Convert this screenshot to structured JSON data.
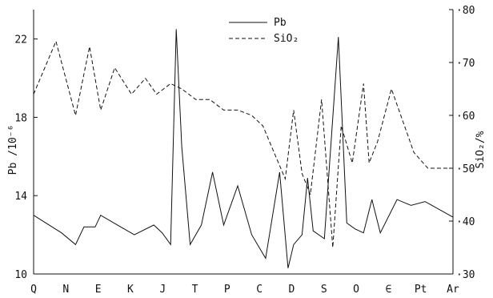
{
  "chart_data": {
    "type": "line",
    "categories": [
      "Q",
      "N",
      "E",
      "K",
      "J",
      "T",
      "P",
      "C",
      "D",
      "S",
      "O",
      "∈",
      "Pt",
      "Ar"
    ],
    "left_axis": {
      "label": "Pb /10⁻⁶",
      "ylim": [
        10,
        23.5
      ],
      "ticks": [
        10,
        14,
        18,
        22
      ],
      "tick_labels": [
        "10",
        "14",
        "18",
        "22"
      ]
    },
    "right_axis": {
      "label": "SiO₂/%",
      "ylim": [
        30,
        80
      ],
      "ticks": [
        30,
        40,
        50,
        60,
        70,
        80
      ],
      "tick_labels": [
        "30",
        "40",
        "50",
        "60",
        "70",
        "80"
      ]
    },
    "x_range": [
      0,
      15
    ],
    "series": [
      {
        "name": "Pb",
        "axis": "left",
        "style": "solid",
        "color": "#111111",
        "x": [
          0,
          1,
          1.5,
          1.8,
          2.2,
          2.4,
          3,
          3.6,
          4.3,
          4.6,
          4.9,
          5.1,
          5.3,
          5.6,
          6,
          6.4,
          6.8,
          7.3,
          7.8,
          8.3,
          8.8,
          9.1,
          9.3,
          9.6,
          9.8,
          10.0,
          10.4,
          10.9,
          11.2,
          11.5,
          11.8,
          12.1,
          12.4,
          13.0,
          13.5,
          14.0,
          15.0
        ],
        "values": [
          13.0,
          12.1,
          11.5,
          12.4,
          12.4,
          13.0,
          12.5,
          12.0,
          12.5,
          12.1,
          11.5,
          22.5,
          16.5,
          11.5,
          12.5,
          15.2,
          12.5,
          14.5,
          12.0,
          10.8,
          15.2,
          10.3,
          11.5,
          12.0,
          14.9,
          12.2,
          11.8,
          22.1,
          12.6,
          12.3,
          12.1,
          13.8,
          12.1,
          13.8,
          13.5,
          13.7,
          12.9
        ]
      },
      {
        "name": "SiO₂",
        "axis": "right",
        "style": "dashed",
        "color": "#111111",
        "x": [
          0,
          0.8,
          1.5,
          2.0,
          2.4,
          2.9,
          3.5,
          4.0,
          4.4,
          4.9,
          5.3,
          5.8,
          6.3,
          6.8,
          7.3,
          7.8,
          8.2,
          8.6,
          9.0,
          9.3,
          9.6,
          9.9,
          10.3,
          10.7,
          11.0,
          11.4,
          11.8,
          12.0,
          12.3,
          12.8,
          13.2,
          13.6,
          14.1,
          14.5,
          15.0
        ],
        "values": [
          64,
          74,
          60,
          73,
          61,
          69,
          64,
          67,
          64,
          66,
          65,
          63,
          63,
          61,
          61,
          60,
          58,
          53,
          48,
          61,
          49,
          45,
          63,
          35,
          58,
          51,
          66,
          51,
          55,
          65,
          59,
          53,
          50,
          50,
          50
        ]
      }
    ],
    "legend": {
      "placement": "top-center",
      "entries": [
        "Pb",
        "SiO₂"
      ]
    },
    "grid": false
  }
}
